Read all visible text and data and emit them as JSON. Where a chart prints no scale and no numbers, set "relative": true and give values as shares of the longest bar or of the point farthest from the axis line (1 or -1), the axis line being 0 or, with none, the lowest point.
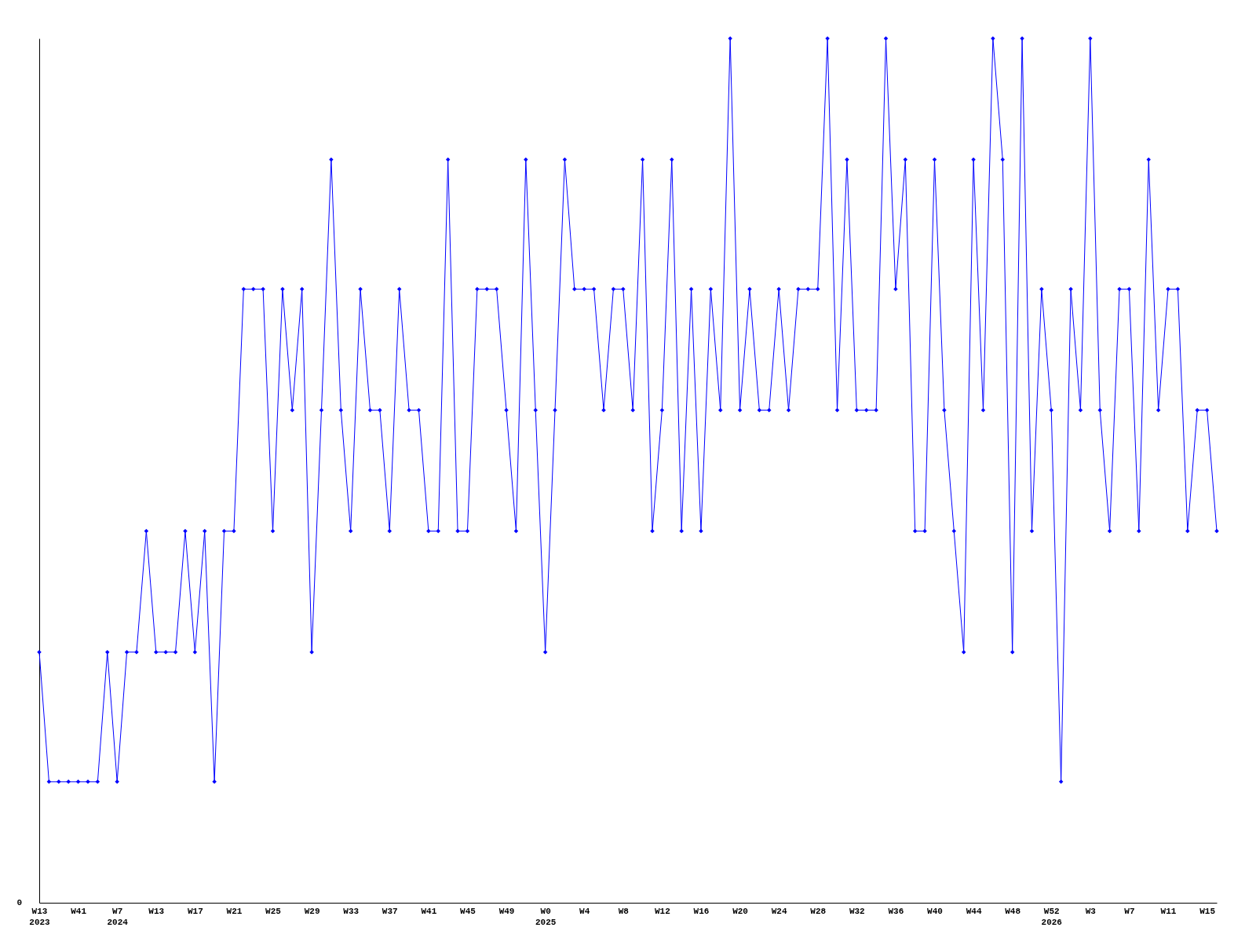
{
  "chart_data": {
    "type": "line",
    "relative": true,
    "categories": [
      "W13\n2023",
      null,
      null,
      null,
      "W41",
      null,
      null,
      null,
      "W7\n2024",
      null,
      null,
      null,
      "W13",
      null,
      null,
      null,
      "W17",
      null,
      null,
      null,
      "W21",
      null,
      null,
      null,
      "W25",
      null,
      null,
      null,
      "W29",
      null,
      null,
      null,
      "W33",
      null,
      null,
      null,
      "W37",
      null,
      null,
      null,
      "W41",
      null,
      null,
      null,
      "W45",
      null,
      null,
      null,
      "W49",
      null,
      null,
      null,
      "W0\n2025",
      null,
      null,
      null,
      "W4",
      null,
      null,
      null,
      "W8",
      null,
      null,
      null,
      "W12",
      null,
      null,
      null,
      "W16",
      null,
      null,
      null,
      "W20",
      null,
      null,
      null,
      "W24",
      null,
      null,
      null,
      "W28",
      null,
      null,
      null,
      "W32",
      null,
      null,
      null,
      "W36",
      null,
      null,
      null,
      "W40",
      null,
      null,
      null,
      "W44",
      null,
      null,
      null,
      "W48",
      null,
      null,
      null,
      "W52\n2026",
      null,
      null,
      null,
      "W3",
      null,
      null,
      null,
      "W7",
      null,
      null,
      null,
      "W11",
      null,
      null,
      null,
      "W15",
      null
    ],
    "series": [
      {
        "color": "#0000ff",
        "values": [
          0.29,
          0.14,
          0.14,
          0.14,
          0.14,
          0.14,
          0.14,
          0.29,
          0.14,
          0.29,
          0.29,
          0.43,
          0.29,
          0.29,
          0.29,
          0.43,
          0.29,
          0.43,
          0.14,
          0.43,
          0.43,
          0.71,
          0.71,
          0.71,
          0.43,
          0.71,
          0.57,
          0.71,
          0.29,
          0.57,
          0.86,
          0.57,
          0.43,
          0.71,
          0.57,
          0.57,
          0.43,
          0.71,
          0.57,
          0.57,
          0.43,
          0.43,
          0.86,
          0.43,
          0.43,
          0.71,
          0.71,
          0.71,
          0.57,
          0.43,
          0.86,
          0.57,
          0.29,
          0.57,
          0.86,
          0.71,
          0.71,
          0.71,
          0.57,
          0.71,
          0.71,
          0.57,
          0.86,
          0.43,
          0.57,
          0.86,
          0.43,
          0.71,
          0.43,
          0.71,
          0.57,
          1,
          0.57,
          0.71,
          0.57,
          0.57,
          0.71,
          0.57,
          0.71,
          0.71,
          0.71,
          1,
          0.57,
          0.86,
          0.57,
          0.57,
          0.57,
          1,
          0.71,
          0.86,
          0.43,
          0.43,
          0.86,
          0.57,
          0.43,
          0.29,
          0.86,
          0.57,
          1,
          0.86,
          0.29,
          1,
          0.43,
          0.71,
          0.57,
          0.14,
          0.71,
          0.57,
          1,
          0.57,
          0.43,
          0.71,
          0.71,
          0.43,
          0.86,
          0.57,
          0.71,
          0.71,
          0.43,
          0.57,
          0.57,
          0.43
        ]
      }
    ],
    "annotations": [
      "0"
    ],
    "marker": "diamond",
    "grid": false,
    "legend": false
  }
}
